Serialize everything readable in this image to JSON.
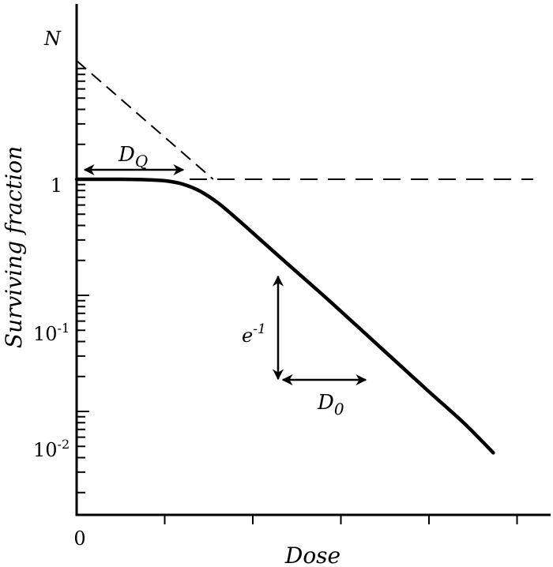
{
  "chart_data": {
    "type": "line",
    "title": "",
    "xlabel": "Dose",
    "ylabel": "Surviving fraction",
    "y_scale": "log",
    "ylim": [
      0.0032,
      13.5
    ],
    "xlim": [
      0,
      5.3
    ],
    "x_ticks": [
      0,
      1,
      2,
      3,
      4,
      5
    ],
    "x_tick_labels": [
      "0"
    ],
    "y_tick_labels": [
      {
        "value": 1,
        "base": "1",
        "exp": ""
      },
      {
        "value": 0.1,
        "base": "10",
        "exp": "-1"
      },
      {
        "value": 0.01,
        "base": "10",
        "exp": "-2"
      }
    ],
    "grid": false,
    "series": [
      {
        "curve": "multi-target survival curve",
        "x": [
          0,
          0.5,
          0.8,
          1.0,
          1.2,
          1.4,
          1.6,
          1.8,
          2.0,
          2.4,
          2.8,
          3.2,
          3.6,
          4.0,
          4.4,
          4.73
        ],
        "y": [
          1.0,
          1.0,
          0.99,
          0.97,
          0.91,
          0.79,
          0.63,
          0.47,
          0.345,
          0.185,
          0.1,
          0.053,
          0.028,
          0.0148,
          0.0079,
          0.0044
        ]
      }
    ],
    "extrapolation_line": {
      "x": [
        0,
        1.55
      ],
      "y": [
        10.5,
        1.0
      ]
    },
    "reference_line": {
      "y": 1.0
    },
    "annotations": {
      "n_label": "N",
      "dq_label": "D",
      "dq_sub": "Q",
      "e_label": "e",
      "e_sup": "-1",
      "d0_label": "D",
      "d0_sub": "0"
    }
  }
}
